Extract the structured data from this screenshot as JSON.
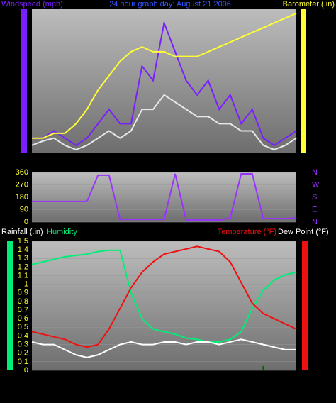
{
  "chart_data": [
    {
      "type": "line",
      "title": "24 hour graph day: August 21 2006",
      "ylim": [
        0,
        10
      ],
      "y2lim": [
        29.9,
        30.2
      ],
      "series": [
        {
          "name": "Windspeed (mph)",
          "color": "#7a1fff",
          "values": [
            1,
            1,
            1.5,
            1,
            0.5,
            1,
            2,
            3,
            2,
            2,
            6,
            5,
            9,
            7,
            5,
            4,
            5,
            3,
            4,
            2,
            3,
            1,
            0.5,
            1,
            1.5
          ]
        },
        {
          "color": "#e8e8e8",
          "values": [
            0.5,
            0.8,
            1,
            0.5,
            0.2,
            0.5,
            1,
            1.5,
            1,
            1.5,
            3,
            3,
            4,
            3.5,
            3,
            2.5,
            2.5,
            2,
            2,
            1.5,
            1.5,
            0.5,
            0.2,
            0.5,
            1
          ]
        },
        {
          "name": "Barometer (.in)",
          "color": "#ffff33",
          "axis": "y2",
          "values": [
            29.93,
            29.93,
            29.94,
            29.94,
            29.96,
            29.99,
            30.03,
            30.06,
            30.09,
            30.11,
            30.12,
            30.11,
            30.11,
            30.1,
            30.1,
            30.1,
            30.11,
            30.12,
            30.13,
            30.14,
            30.15,
            30.16,
            30.17,
            30.18,
            30.19
          ]
        }
      ]
    },
    {
      "type": "line",
      "ylim": [
        0,
        360
      ],
      "yticks": [
        0,
        90,
        180,
        270,
        360
      ],
      "y2labels": [
        "N",
        "W",
        "S",
        "E",
        "N"
      ],
      "series": [
        {
          "color": "#9933ff",
          "values": [
            150,
            150,
            150,
            150,
            150,
            150,
            340,
            340,
            20,
            20,
            20,
            20,
            20,
            350,
            15,
            15,
            15,
            15,
            30,
            350,
            350,
            25,
            25,
            25,
            30
          ]
        }
      ]
    },
    {
      "type": "line",
      "ylim": [
        0,
        1.5
      ],
      "yticks": [
        0,
        0.1,
        0.2,
        0.3,
        0.4,
        0.5,
        0.6,
        0.7,
        0.8,
        0.9,
        1,
        1.1,
        1.2,
        1.3,
        1.4,
        1.5
      ],
      "series": [
        {
          "name": "Rainfall (.in)",
          "color": "#006600",
          "kind": "bar",
          "values": [
            0,
            0,
            0,
            0,
            0,
            0,
            0,
            0,
            0,
            0,
            0,
            0,
            0,
            0,
            0,
            0,
            0,
            0,
            0,
            0,
            0,
            0.05,
            0,
            0,
            0
          ]
        },
        {
          "name": "Humidity",
          "color": "#00ee77",
          "lim": [
            0,
            100
          ],
          "values": [
            82,
            84,
            86,
            88,
            89,
            90,
            92,
            93,
            93,
            60,
            40,
            32,
            30,
            28,
            25,
            24,
            22,
            22,
            24,
            30,
            48,
            62,
            70,
            74,
            76
          ]
        },
        {
          "name": "Temperature (°F)",
          "color": "#ee1111",
          "lim": [
            50,
            100
          ],
          "values": [
            65,
            64,
            63,
            62,
            60,
            59,
            60,
            66,
            74,
            82,
            88,
            92,
            95,
            96,
            97,
            98,
            97,
            96,
            92,
            84,
            76,
            72,
            70,
            68,
            66
          ]
        },
        {
          "name": "Dew Point (°F)",
          "color": "#ffffff",
          "lim": [
            50,
            100
          ],
          "values": [
            61,
            60,
            60,
            58,
            56,
            55,
            56,
            58,
            60,
            61,
            60,
            60,
            61,
            61,
            60,
            61,
            61,
            60,
            61,
            62,
            61,
            60,
            59,
            58,
            58
          ]
        }
      ]
    }
  ]
}
